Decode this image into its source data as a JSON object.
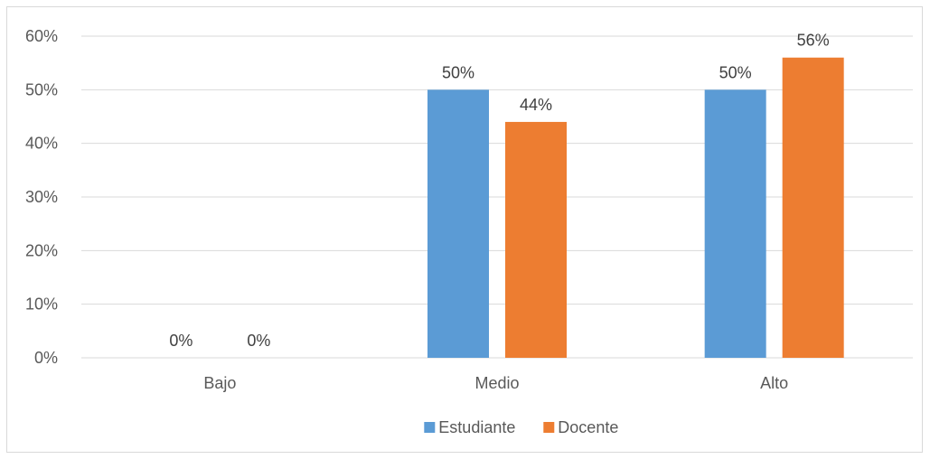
{
  "chart_data": {
    "type": "bar",
    "categories": [
      "Bajo",
      "Medio",
      "Alto"
    ],
    "series": [
      {
        "name": "Estudiante",
        "values": [
          0,
          50,
          50
        ],
        "labels": [
          "0%",
          "50%",
          "50%"
        ],
        "color": "#5b9bd5"
      },
      {
        "name": "Docente",
        "values": [
          0,
          44,
          56
        ],
        "labels": [
          "0%",
          "44%",
          "56%"
        ],
        "color": "#ed7d31"
      }
    ],
    "ylim": [
      0,
      60
    ],
    "yticks": [
      0,
      10,
      20,
      30,
      40,
      50,
      60
    ],
    "ytick_labels": [
      "0%",
      "10%",
      "20%",
      "30%",
      "40%",
      "50%",
      "60%"
    ],
    "grid": true,
    "legend_position": "bottom",
    "gridline_color": "#d9d9d9"
  }
}
